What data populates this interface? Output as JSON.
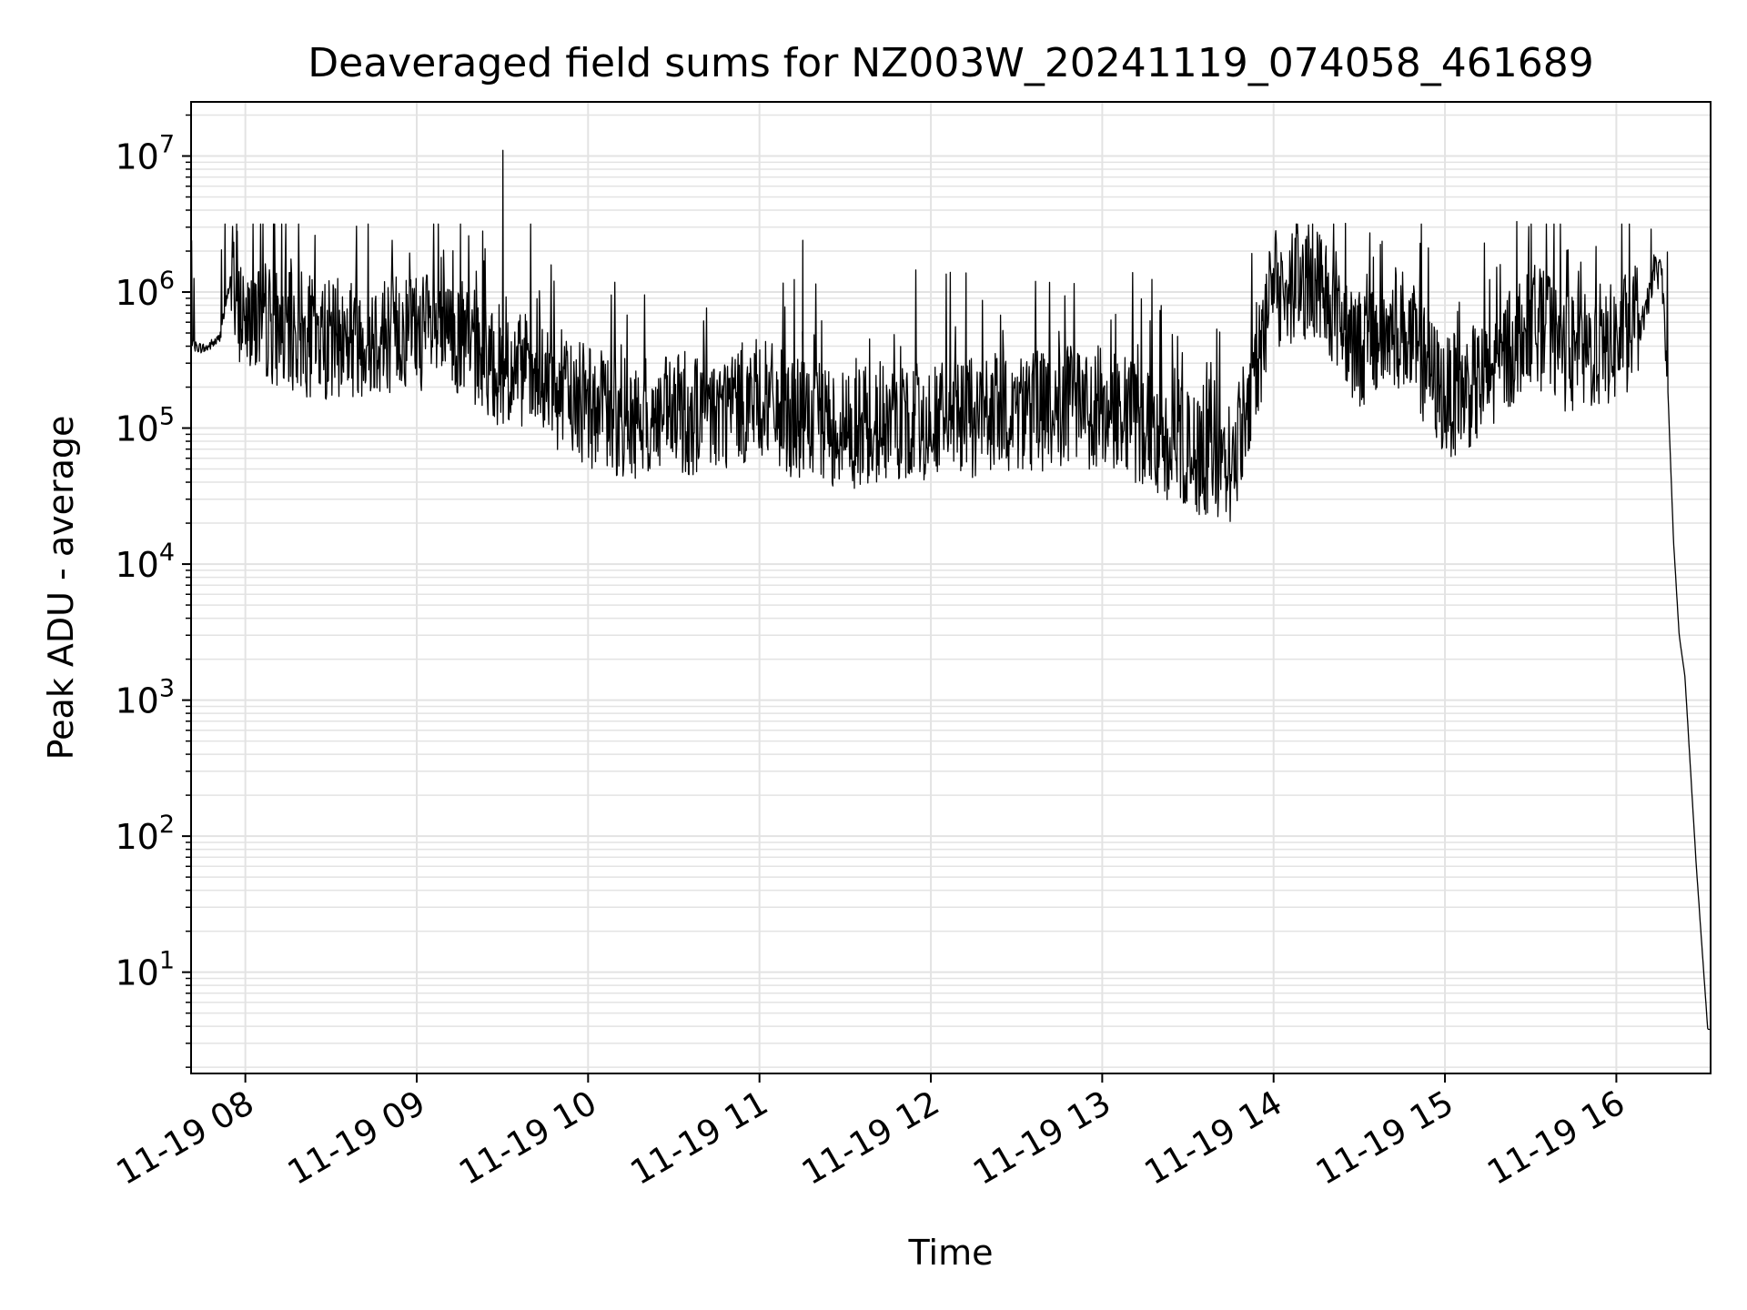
{
  "chart_data": {
    "type": "line",
    "title": "Deaveraged field sums for NZ003W_20241119_074058_461689",
    "xlabel": "Time",
    "ylabel": "Peak ADU - average",
    "yscale": "log",
    "ylim": [
      1.8,
      25000000
    ],
    "xlim": [
      "2024-11-19 07:41",
      "2024-11-19 16:33"
    ],
    "grid": true,
    "grid_minor_y": true,
    "line_color": "#000000",
    "grid_color": "#e3e3e3",
    "x_ticks": [
      {
        "label": "11-19 08",
        "value": "2024-11-19 08:00"
      },
      {
        "label": "11-19 09",
        "value": "2024-11-19 09:00"
      },
      {
        "label": "11-19 10",
        "value": "2024-11-19 10:00"
      },
      {
        "label": "11-19 11",
        "value": "2024-11-19 11:00"
      },
      {
        "label": "11-19 12",
        "value": "2024-11-19 12:00"
      },
      {
        "label": "11-19 13",
        "value": "2024-11-19 13:00"
      },
      {
        "label": "11-19 14",
        "value": "2024-11-19 14:00"
      },
      {
        "label": "11-19 15",
        "value": "2024-11-19 15:00"
      },
      {
        "label": "11-19 16",
        "value": "2024-11-19 16:00"
      }
    ],
    "y_ticks": [
      {
        "base": "10",
        "exp": "1",
        "value": 10
      },
      {
        "base": "10",
        "exp": "2",
        "value": 100
      },
      {
        "base": "10",
        "exp": "3",
        "value": 1000
      },
      {
        "base": "10",
        "exp": "4",
        "value": 10000
      },
      {
        "base": "10",
        "exp": "5",
        "value": 100000
      },
      {
        "base": "10",
        "exp": "6",
        "value": 1000000
      },
      {
        "base": "10",
        "exp": "7",
        "value": 10000000
      }
    ],
    "x": [
      "2024-11-19 07:41",
      "2024-11-19 07:46",
      "2024-11-19 07:51",
      "2024-11-19 07:55",
      "2024-11-19 07:58",
      "2024-11-19 08:05",
      "2024-11-19 08:15",
      "2024-11-19 08:30",
      "2024-11-19 08:45",
      "2024-11-19 09:00",
      "2024-11-19 09:15",
      "2024-11-19 09:30",
      "2024-11-19 09:45",
      "2024-11-19 10:00",
      "2024-11-19 10:15",
      "2024-11-19 10:30",
      "2024-11-19 10:45",
      "2024-11-19 11:00",
      "2024-11-19 11:15",
      "2024-11-19 11:30",
      "2024-11-19 11:45",
      "2024-11-19 12:00",
      "2024-11-19 12:15",
      "2024-11-19 12:30",
      "2024-11-19 12:45",
      "2024-11-19 13:00",
      "2024-11-19 13:15",
      "2024-11-19 13:30",
      "2024-11-19 13:45",
      "2024-11-19 14:00",
      "2024-11-19 14:15",
      "2024-11-19 14:30",
      "2024-11-19 14:45",
      "2024-11-19 15:00",
      "2024-11-19 15:15",
      "2024-11-19 15:30",
      "2024-11-19 15:45",
      "2024-11-19 16:00",
      "2024-11-19 16:10",
      "2024-11-19 16:13",
      "2024-11-19 16:16",
      "2024-11-19 16:18",
      "2024-11-19 16:20",
      "2024-11-19 16:22",
      "2024-11-19 16:24",
      "2024-11-19 16:26",
      "2024-11-19 16:28",
      "2024-11-19 16:30",
      "2024-11-19 16:32"
    ],
    "y": [
      400000,
      380000,
      450000,
      1300000,
      700000,
      600000,
      450000,
      400000,
      450000,
      480000,
      400000,
      250000,
      180000,
      130000,
      100000,
      110000,
      120000,
      150000,
      100000,
      90000,
      95000,
      100000,
      110000,
      120000,
      120000,
      130000,
      90000,
      60000,
      45000,
      900000,
      1200000,
      350000,
      500000,
      150000,
      200000,
      550000,
      300000,
      380000,
      600000,
      1400000,
      1300000,
      200000,
      15000,
      3000,
      1500,
      300,
      60,
      15,
      3.8
    ],
    "spikes": [
      {
        "x": "2024-11-19 09:30",
        "y": 11000000
      },
      {
        "x": "2024-11-19 07:57",
        "y": 2800000
      },
      {
        "x": "2024-11-19 14:25",
        "y": 3200000
      },
      {
        "x": "2024-11-19 15:25",
        "y": 3300000
      },
      {
        "x": "2024-11-19 16:12",
        "y": 2900000
      },
      {
        "x": "2024-11-19 11:15",
        "y": 2400000
      }
    ]
  }
}
